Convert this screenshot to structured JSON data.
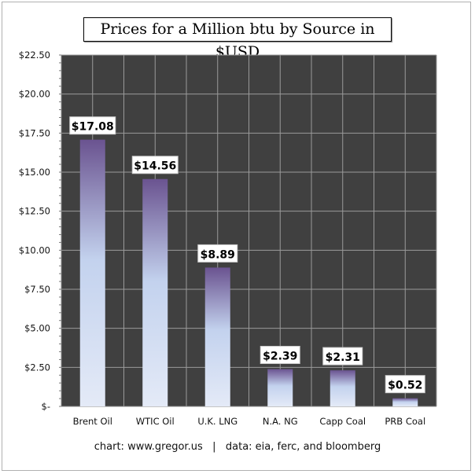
{
  "chart_data": {
    "type": "bar",
    "title": "Prices for a Million btu by Source in $USD",
    "categories": [
      "Brent Oil",
      "WTIC Oil",
      "U.K. LNG",
      "N.A. NG",
      "Capp Coal",
      "PRB Coal"
    ],
    "values": [
      17.08,
      14.56,
      8.89,
      2.39,
      2.31,
      0.52
    ],
    "data_labels": [
      "$17.08",
      "$14.56",
      "$8.89",
      "$2.39",
      "$2.31",
      "$0.52"
    ],
    "ylim": [
      0,
      22.5
    ],
    "yticks": [
      0,
      2.5,
      5,
      7.5,
      10,
      12.5,
      15,
      17.5,
      20,
      22.5
    ],
    "ytick_labels": [
      "$-",
      "$2.50",
      "$5.00",
      "$7.50",
      "$10.00",
      "$12.50",
      "$15.00",
      "$17.50",
      "$20.00",
      "$22.50"
    ],
    "xlabel": "",
    "ylabel": "",
    "grid": true,
    "legend": "none",
    "colors": {
      "plot_background": "#404040",
      "grid": "#9a9a9a",
      "bar_top": "#6a5390",
      "bar_mid": "#c3d2ee",
      "bar_bottom": "#e4eaf7"
    }
  },
  "footer": {
    "credit": "chart: www.gregor.us   |   data: eia, ferc, and bloomberg"
  }
}
